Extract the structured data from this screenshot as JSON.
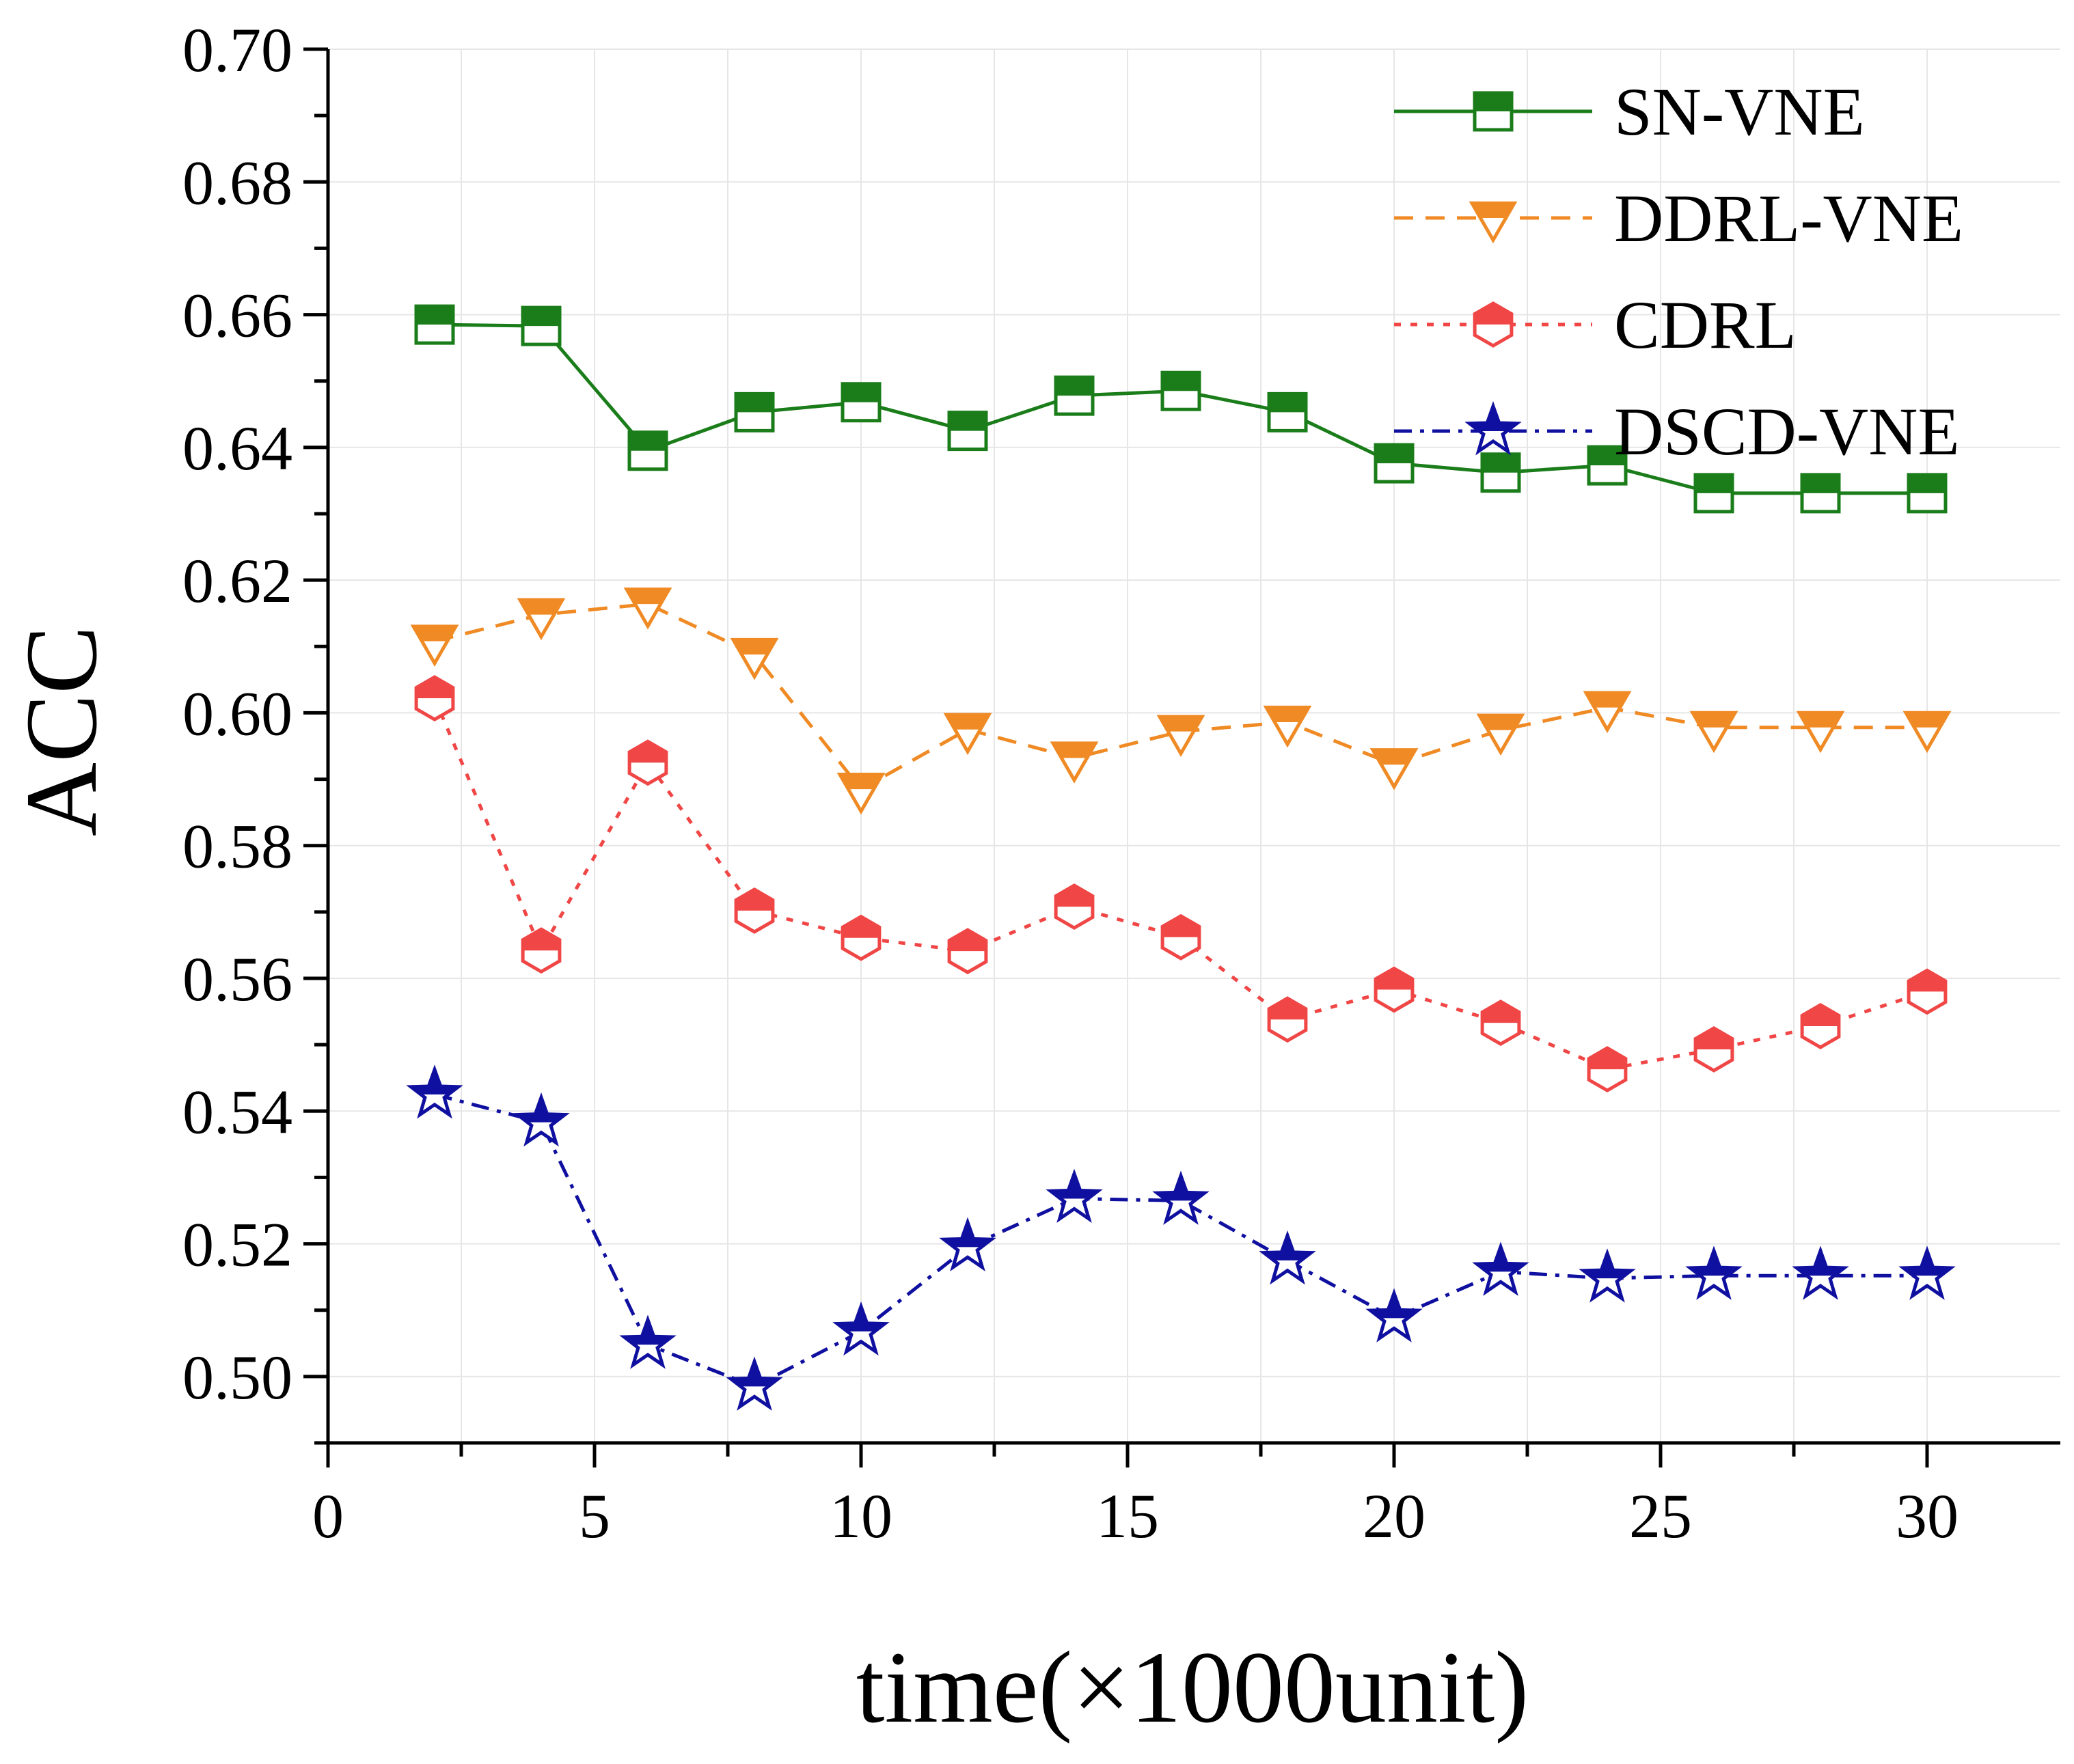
{
  "chart_data": {
    "type": "line",
    "title": "",
    "xlabel": "time(×1000unit)",
    "ylabel": "ACC",
    "xlim": [
      0,
      32.5
    ],
    "ylim": [
      0.49,
      0.7
    ],
    "xticks": [
      0,
      5,
      10,
      15,
      20,
      25,
      30
    ],
    "yticks": [
      0.5,
      0.52,
      0.54,
      0.56,
      0.58,
      0.6,
      0.62,
      0.64,
      0.66,
      0.68,
      0.7
    ],
    "xtick_labels": [
      "0",
      "5",
      "10",
      "15",
      "20",
      "25",
      "30"
    ],
    "ytick_labels": [
      "0.50",
      "0.52",
      "0.54",
      "0.56",
      "0.58",
      "0.60",
      "0.62",
      "0.64",
      "0.66",
      "0.68",
      "0.70"
    ],
    "grid": true,
    "legend_position": "top-right",
    "x": [
      2,
      4,
      6,
      8,
      10,
      12,
      14,
      16,
      18,
      20,
      22,
      24,
      26,
      28,
      30
    ],
    "series": [
      {
        "name": "SN-VNE",
        "color": "#1a7d1a",
        "dash": "solid",
        "marker": "square-half",
        "values": [
          0.6585,
          0.6583,
          0.6395,
          0.6453,
          0.6468,
          0.6425,
          0.6478,
          0.6485,
          0.6453,
          0.6376,
          0.6362,
          0.6373,
          0.6331,
          0.6331,
          0.6331
        ]
      },
      {
        "name": "DDRL-VNE",
        "color": "#f08a24",
        "dash": "dashed",
        "marker": "triangle-down-half",
        "values": [
          0.6108,
          0.6148,
          0.6164,
          0.6088,
          0.5885,
          0.5975,
          0.5932,
          0.5972,
          0.5986,
          0.5922,
          0.5974,
          0.6008,
          0.5978,
          0.5978,
          0.5978
        ]
      },
      {
        "name": "CDRL",
        "color": "#f04646",
        "dash": "dotted",
        "marker": "hexagon-half",
        "values": [
          0.6022,
          0.5642,
          0.5925,
          0.5702,
          0.5661,
          0.5641,
          0.5708,
          0.5662,
          0.5538,
          0.5583,
          0.5533,
          0.5463,
          0.5493,
          0.5528,
          0.558
        ]
      },
      {
        "name": "DSCD-VNE",
        "color": "#1010a0",
        "dash": "dashdot",
        "marker": "star-half",
        "values": [
          0.5425,
          0.5383,
          0.5048,
          0.4985,
          0.5068,
          0.5195,
          0.5268,
          0.5265,
          0.5175,
          0.5088,
          0.5158,
          0.5148,
          0.5152,
          0.5152,
          0.5152
        ]
      }
    ]
  }
}
